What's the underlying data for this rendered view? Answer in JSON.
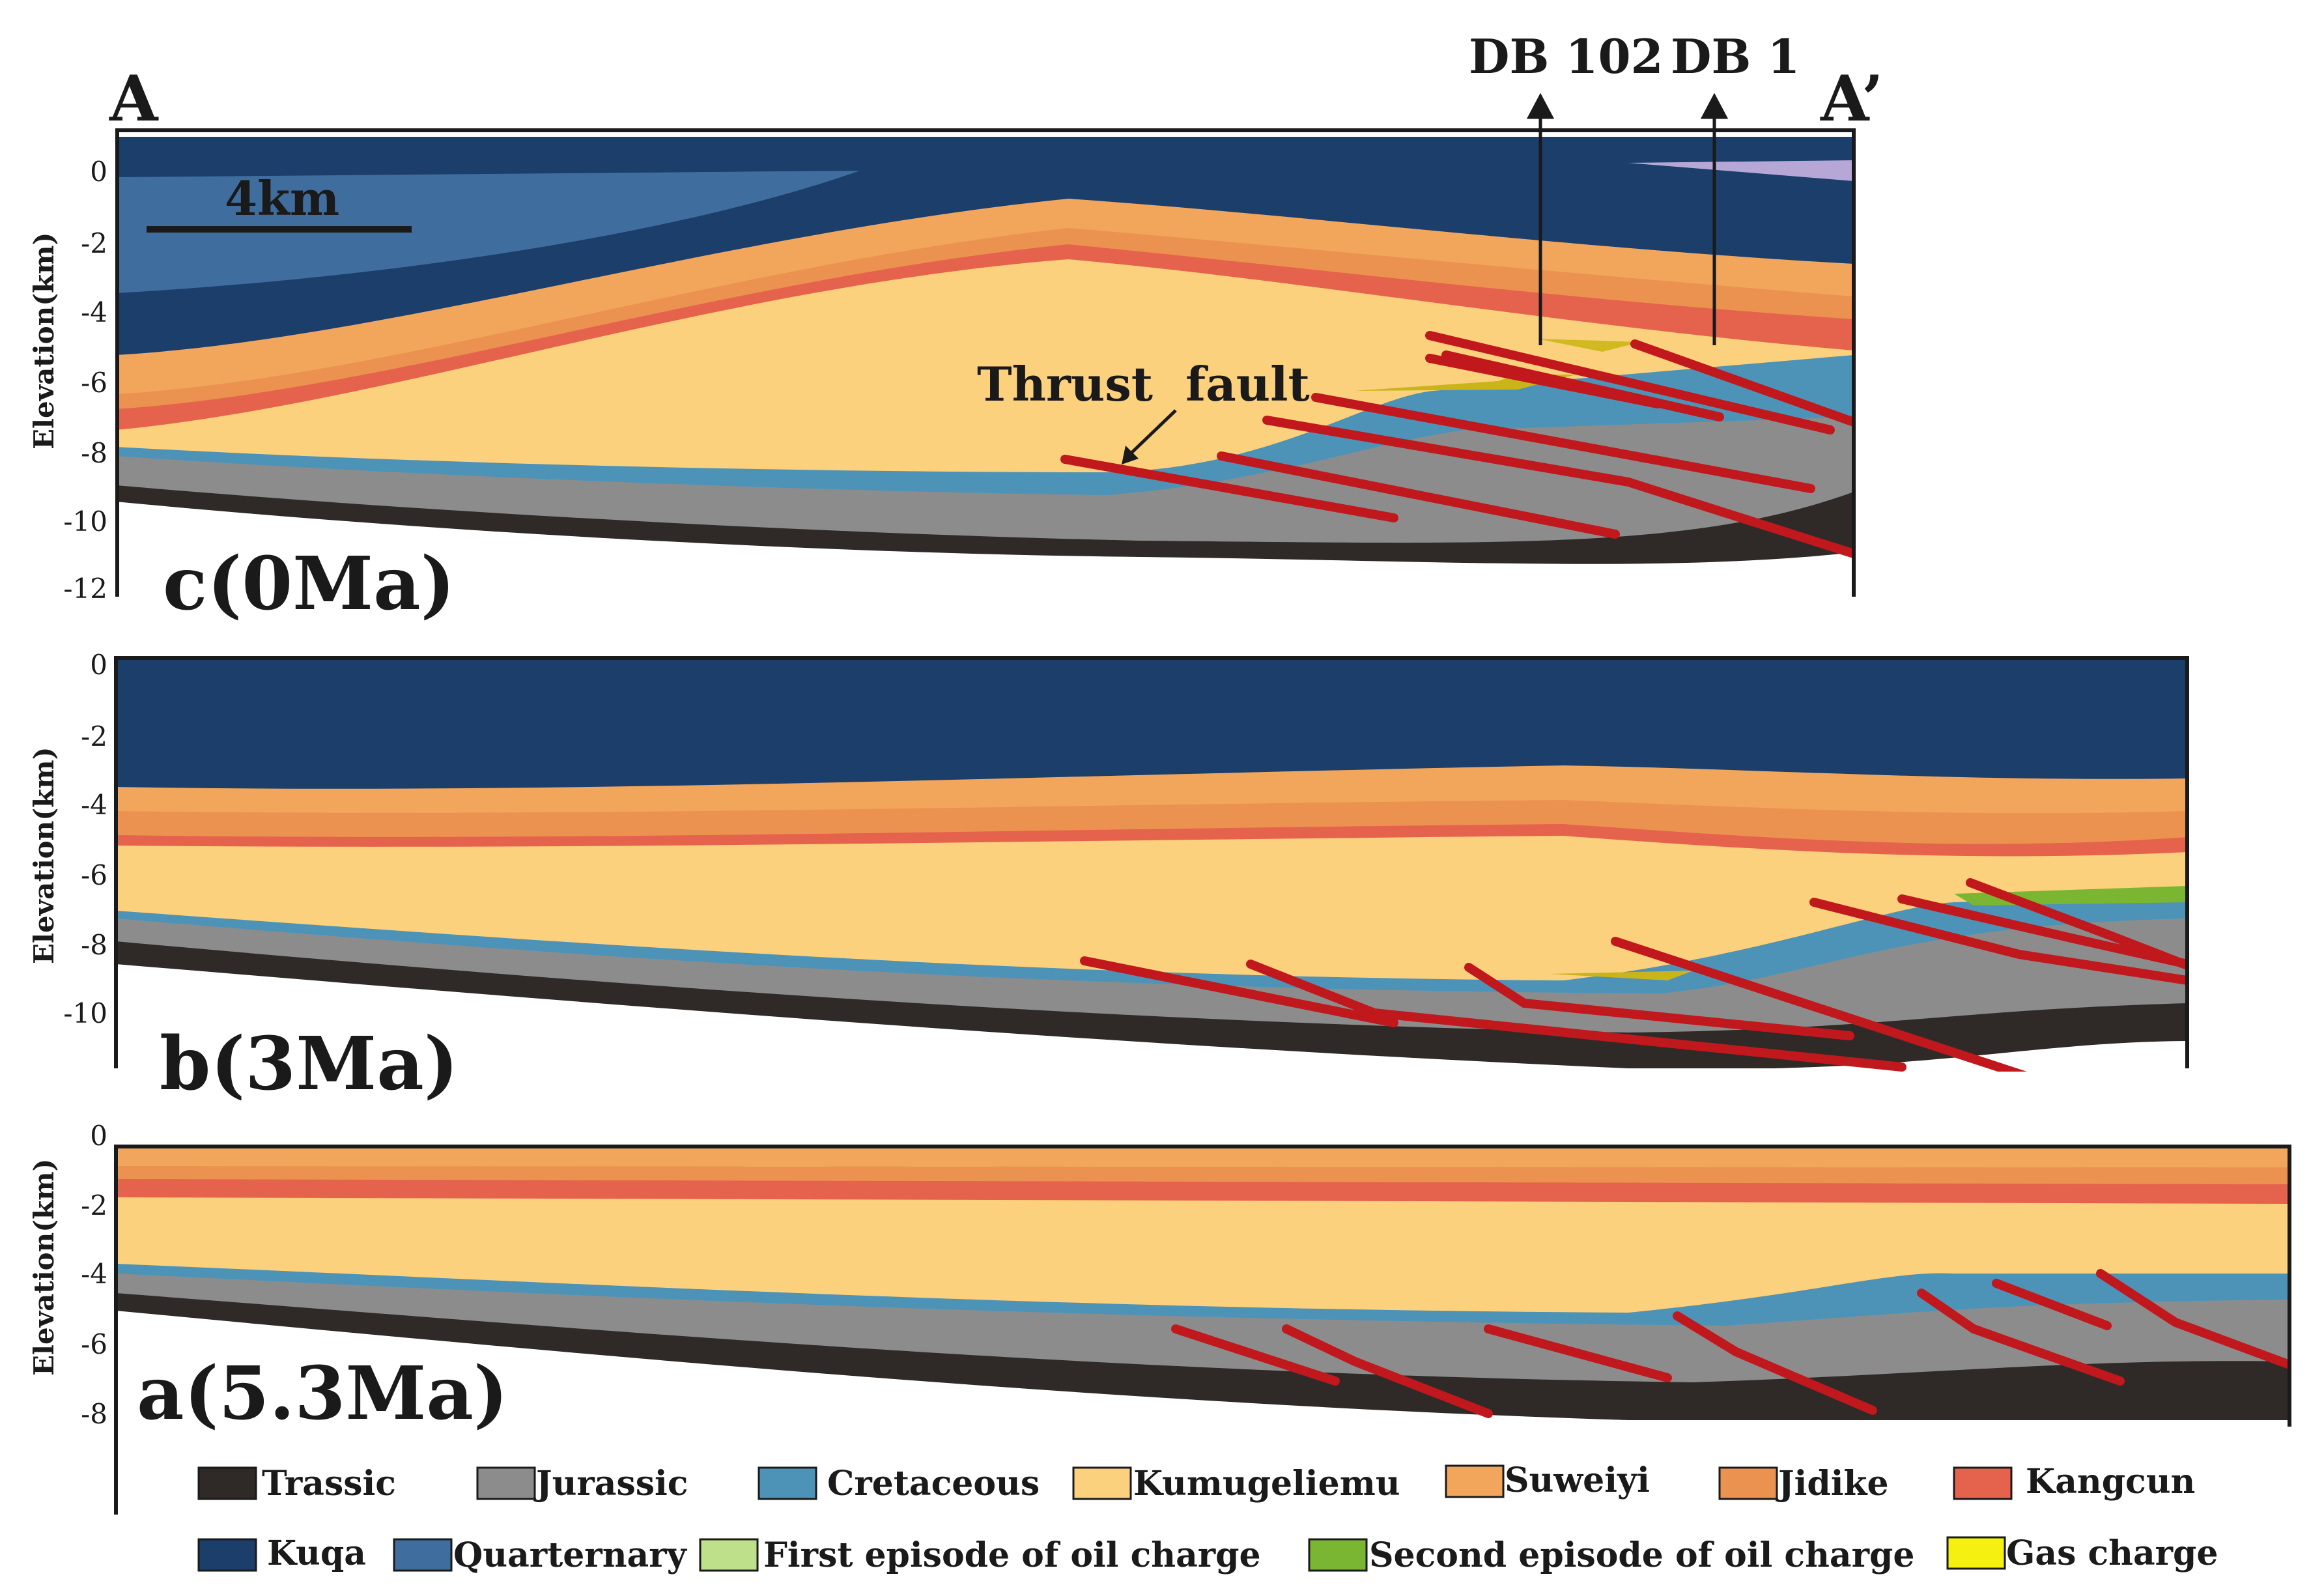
{
  "figure": {
    "section_start_label": "A",
    "section_end_label": "A’",
    "wells": [
      {
        "name": "DB 102"
      },
      {
        "name": "DB 1"
      }
    ],
    "scale_bar_label": "4km",
    "annotation": "Thrust  fault",
    "y_axis_label": "Elevation(km)",
    "panels": [
      {
        "id": "c",
        "label": "c(0Ma)",
        "ticks": [
          "0",
          "-2",
          "-4",
          "-6",
          "-8",
          "-10",
          "-12"
        ]
      },
      {
        "id": "b",
        "label": "b(3Ma)",
        "ticks": [
          "0",
          "-2",
          "-4",
          "-6",
          "-8",
          "-10"
        ]
      },
      {
        "id": "a",
        "label": "a(5.3Ma)",
        "ticks": [
          "0",
          "-2",
          "-4",
          "-6",
          "-8"
        ]
      }
    ]
  },
  "colors": {
    "trassic": "#2f2a27",
    "jurassic": "#8c8c8c",
    "cretaceous": "#4d93b8",
    "kumugeliemu": "#fcd17d",
    "suweiyi": "#f2a65c",
    "jidike": "#ec9250",
    "kangcun": "#e5634d",
    "kuqa": "#1b3e6b",
    "quarternary": "#3f6d9e",
    "first_oil": "#bfe08a",
    "second_oil": "#7ab632",
    "gas": "#f5f00f",
    "fault": "#c0181c",
    "outline": "#1a1a1a"
  },
  "legend": {
    "row1": [
      {
        "key": "trassic",
        "label": "Trassic"
      },
      {
        "key": "jurassic",
        "label": "Jurassic"
      },
      {
        "key": "cretaceous",
        "label": "Cretaceous"
      },
      {
        "key": "kumugeliemu",
        "label": "Kumugeliemu"
      },
      {
        "key": "suweiyi",
        "label": "Suweiyi"
      },
      {
        "key": "jidike",
        "label": "Jidike"
      },
      {
        "key": "kangcun",
        "label": "Kangcun"
      }
    ],
    "row2": [
      {
        "key": "kuqa",
        "label": "Kuqa"
      },
      {
        "key": "quarternary",
        "label": "Quarternary"
      },
      {
        "key": "first_oil",
        "label": "First episode of oil charge"
      },
      {
        "key": "second_oil",
        "label": "Second episode of oil charge"
      },
      {
        "key": "gas",
        "label": "Gas charge"
      }
    ]
  }
}
